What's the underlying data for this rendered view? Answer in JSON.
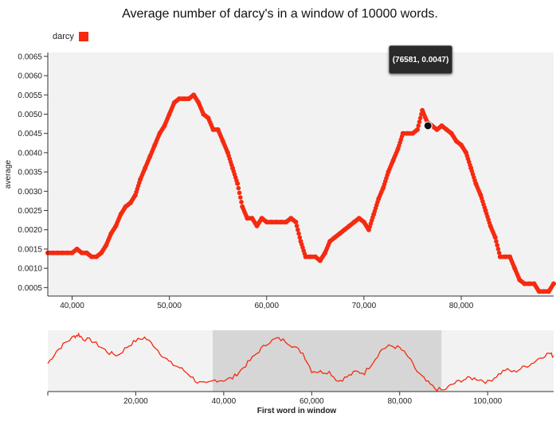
{
  "chart_data": [
    {
      "type": "scatter",
      "title": "Average number of darcy's in a window of 10000 words.",
      "xlabel": "",
      "ylabel": "average",
      "xlim": [
        37500,
        89500
      ],
      "ylim": [
        0.00028,
        0.0066
      ],
      "xticks": [
        "40,000",
        "50,000",
        "60,000",
        "70,000",
        "80,000"
      ],
      "xtick_values": [
        40000,
        50000,
        60000,
        70000,
        80000
      ],
      "yticks": [
        "0.0005",
        "0.0010",
        "0.0015",
        "0.0020",
        "0.0025",
        "0.0030",
        "0.0035",
        "0.0040",
        "0.0045",
        "0.0050",
        "0.0055",
        "0.0060",
        "0.0065"
      ],
      "ytick_values": [
        0.0005,
        0.001,
        0.0015,
        0.002,
        0.0025,
        0.003,
        0.0035,
        0.004,
        0.0045,
        0.005,
        0.0055,
        0.006,
        0.0065
      ],
      "legend": "top-left",
      "grid": false,
      "series": [
        {
          "name": "darcy",
          "color": "#f52a10",
          "x": [
            37500,
            38000,
            38500,
            39000,
            39500,
            40000,
            40500,
            41000,
            41500,
            42000,
            42500,
            43000,
            43500,
            44000,
            44500,
            45000,
            45500,
            46000,
            46500,
            47000,
            47500,
            48000,
            48500,
            49000,
            49500,
            50000,
            50500,
            51000,
            51500,
            52000,
            52500,
            53000,
            53500,
            54000,
            54500,
            55000,
            55500,
            56000,
            56500,
            57000,
            57500,
            58000,
            58500,
            59000,
            59500,
            60000,
            60500,
            61000,
            61500,
            62000,
            62500,
            63000,
            63500,
            64000,
            64500,
            65000,
            65500,
            66000,
            66500,
            67000,
            67500,
            68000,
            68500,
            69000,
            69500,
            70000,
            70500,
            71000,
            71500,
            72000,
            72500,
            73000,
            73500,
            74000,
            74500,
            75000,
            75500,
            76000,
            76500,
            77000,
            77500,
            78000,
            78500,
            79000,
            79500,
            80000,
            80500,
            81000,
            81500,
            82000,
            82500,
            83000,
            83500,
            84000,
            84500,
            85000,
            85500,
            86000,
            86500,
            87000,
            87500,
            88000,
            88500,
            89000,
            89500
          ],
          "y": [
            0.0014,
            0.0014,
            0.0014,
            0.0014,
            0.0014,
            0.0014,
            0.0015,
            0.0014,
            0.0014,
            0.0013,
            0.0013,
            0.0014,
            0.0016,
            0.0019,
            0.0021,
            0.0024,
            0.0026,
            0.0027,
            0.0029,
            0.0033,
            0.0036,
            0.0039,
            0.0042,
            0.0045,
            0.0047,
            0.005,
            0.0053,
            0.0054,
            0.0054,
            0.0054,
            0.0055,
            0.0053,
            0.005,
            0.0049,
            0.0046,
            0.0046,
            0.0043,
            0.004,
            0.0036,
            0.0032,
            0.0026,
            0.0023,
            0.0023,
            0.0021,
            0.0023,
            0.0022,
            0.0022,
            0.0022,
            0.0022,
            0.0022,
            0.0023,
            0.0022,
            0.0017,
            0.0013,
            0.0013,
            0.0013,
            0.0012,
            0.0014,
            0.0017,
            0.0018,
            0.0019,
            0.002,
            0.0021,
            0.0022,
            0.0023,
            0.0022,
            0.002,
            0.0024,
            0.0028,
            0.0031,
            0.0035,
            0.0038,
            0.0041,
            0.0045,
            0.0045,
            0.0045,
            0.0046,
            0.0051,
            0.0048,
            0.0047,
            0.0046,
            0.0047,
            0.0046,
            0.0045,
            0.0043,
            0.0042,
            0.004,
            0.0036,
            0.0032,
            0.0029,
            0.0025,
            0.0021,
            0.0018,
            0.0013,
            0.0013,
            0.0013,
            0.001,
            0.0007,
            0.0006,
            0.0006,
            0.0006,
            0.0004,
            0.0004,
            0.0004,
            0.0006
          ]
        }
      ],
      "highlight": {
        "x": 76581,
        "y": 0.0047,
        "label": "(76581, 0.0047)"
      }
    },
    {
      "type": "line",
      "xlabel": "First word in window",
      "ylabel": "",
      "xlim": [
        0,
        115000
      ],
      "ylim": [
        0.0003,
        0.0062
      ],
      "xticks": [
        "20,000",
        "40,000",
        "60,000",
        "80,000",
        "100,000"
      ],
      "xtick_values": [
        20000,
        40000,
        60000,
        80000,
        100000
      ],
      "brush": [
        37500,
        89500
      ],
      "series": [
        {
          "name": "darcy",
          "color": "#f52a10",
          "x": [
            0,
            2000,
            4000,
            6000,
            7000,
            8000,
            10000,
            12000,
            14000,
            16000,
            18000,
            20000,
            22000,
            24000,
            26000,
            28000,
            30000,
            32000,
            34000,
            36000,
            38000,
            40000,
            42000,
            44000,
            46000,
            48000,
            50000,
            52000,
            54000,
            56000,
            58000,
            60000,
            62000,
            64000,
            66000,
            68000,
            70000,
            72000,
            74000,
            76000,
            78000,
            80000,
            82000,
            84000,
            86000,
            88000,
            90000,
            92000,
            94000,
            96000,
            98000,
            100000,
            102000,
            104000,
            106000,
            108000,
            110000,
            112000,
            114000,
            115000
          ],
          "y": [
            0.003,
            0.0042,
            0.005,
            0.0056,
            0.0058,
            0.0054,
            0.0052,
            0.0046,
            0.004,
            0.0038,
            0.0046,
            0.0052,
            0.0055,
            0.0048,
            0.0038,
            0.003,
            0.0026,
            0.002,
            0.0012,
            0.001,
            0.0014,
            0.0014,
            0.0016,
            0.0024,
            0.0033,
            0.0042,
            0.005,
            0.0054,
            0.0052,
            0.0046,
            0.004,
            0.0023,
            0.0022,
            0.0022,
            0.0013,
            0.0017,
            0.0022,
            0.0021,
            0.0032,
            0.0044,
            0.0047,
            0.0045,
            0.0036,
            0.0022,
            0.0013,
            0.0006,
            0.0004,
            0.001,
            0.0014,
            0.0016,
            0.0015,
            0.0012,
            0.0018,
            0.0024,
            0.0022,
            0.0026,
            0.003,
            0.0036,
            0.004,
            0.0037
          ]
        }
      ]
    }
  ]
}
